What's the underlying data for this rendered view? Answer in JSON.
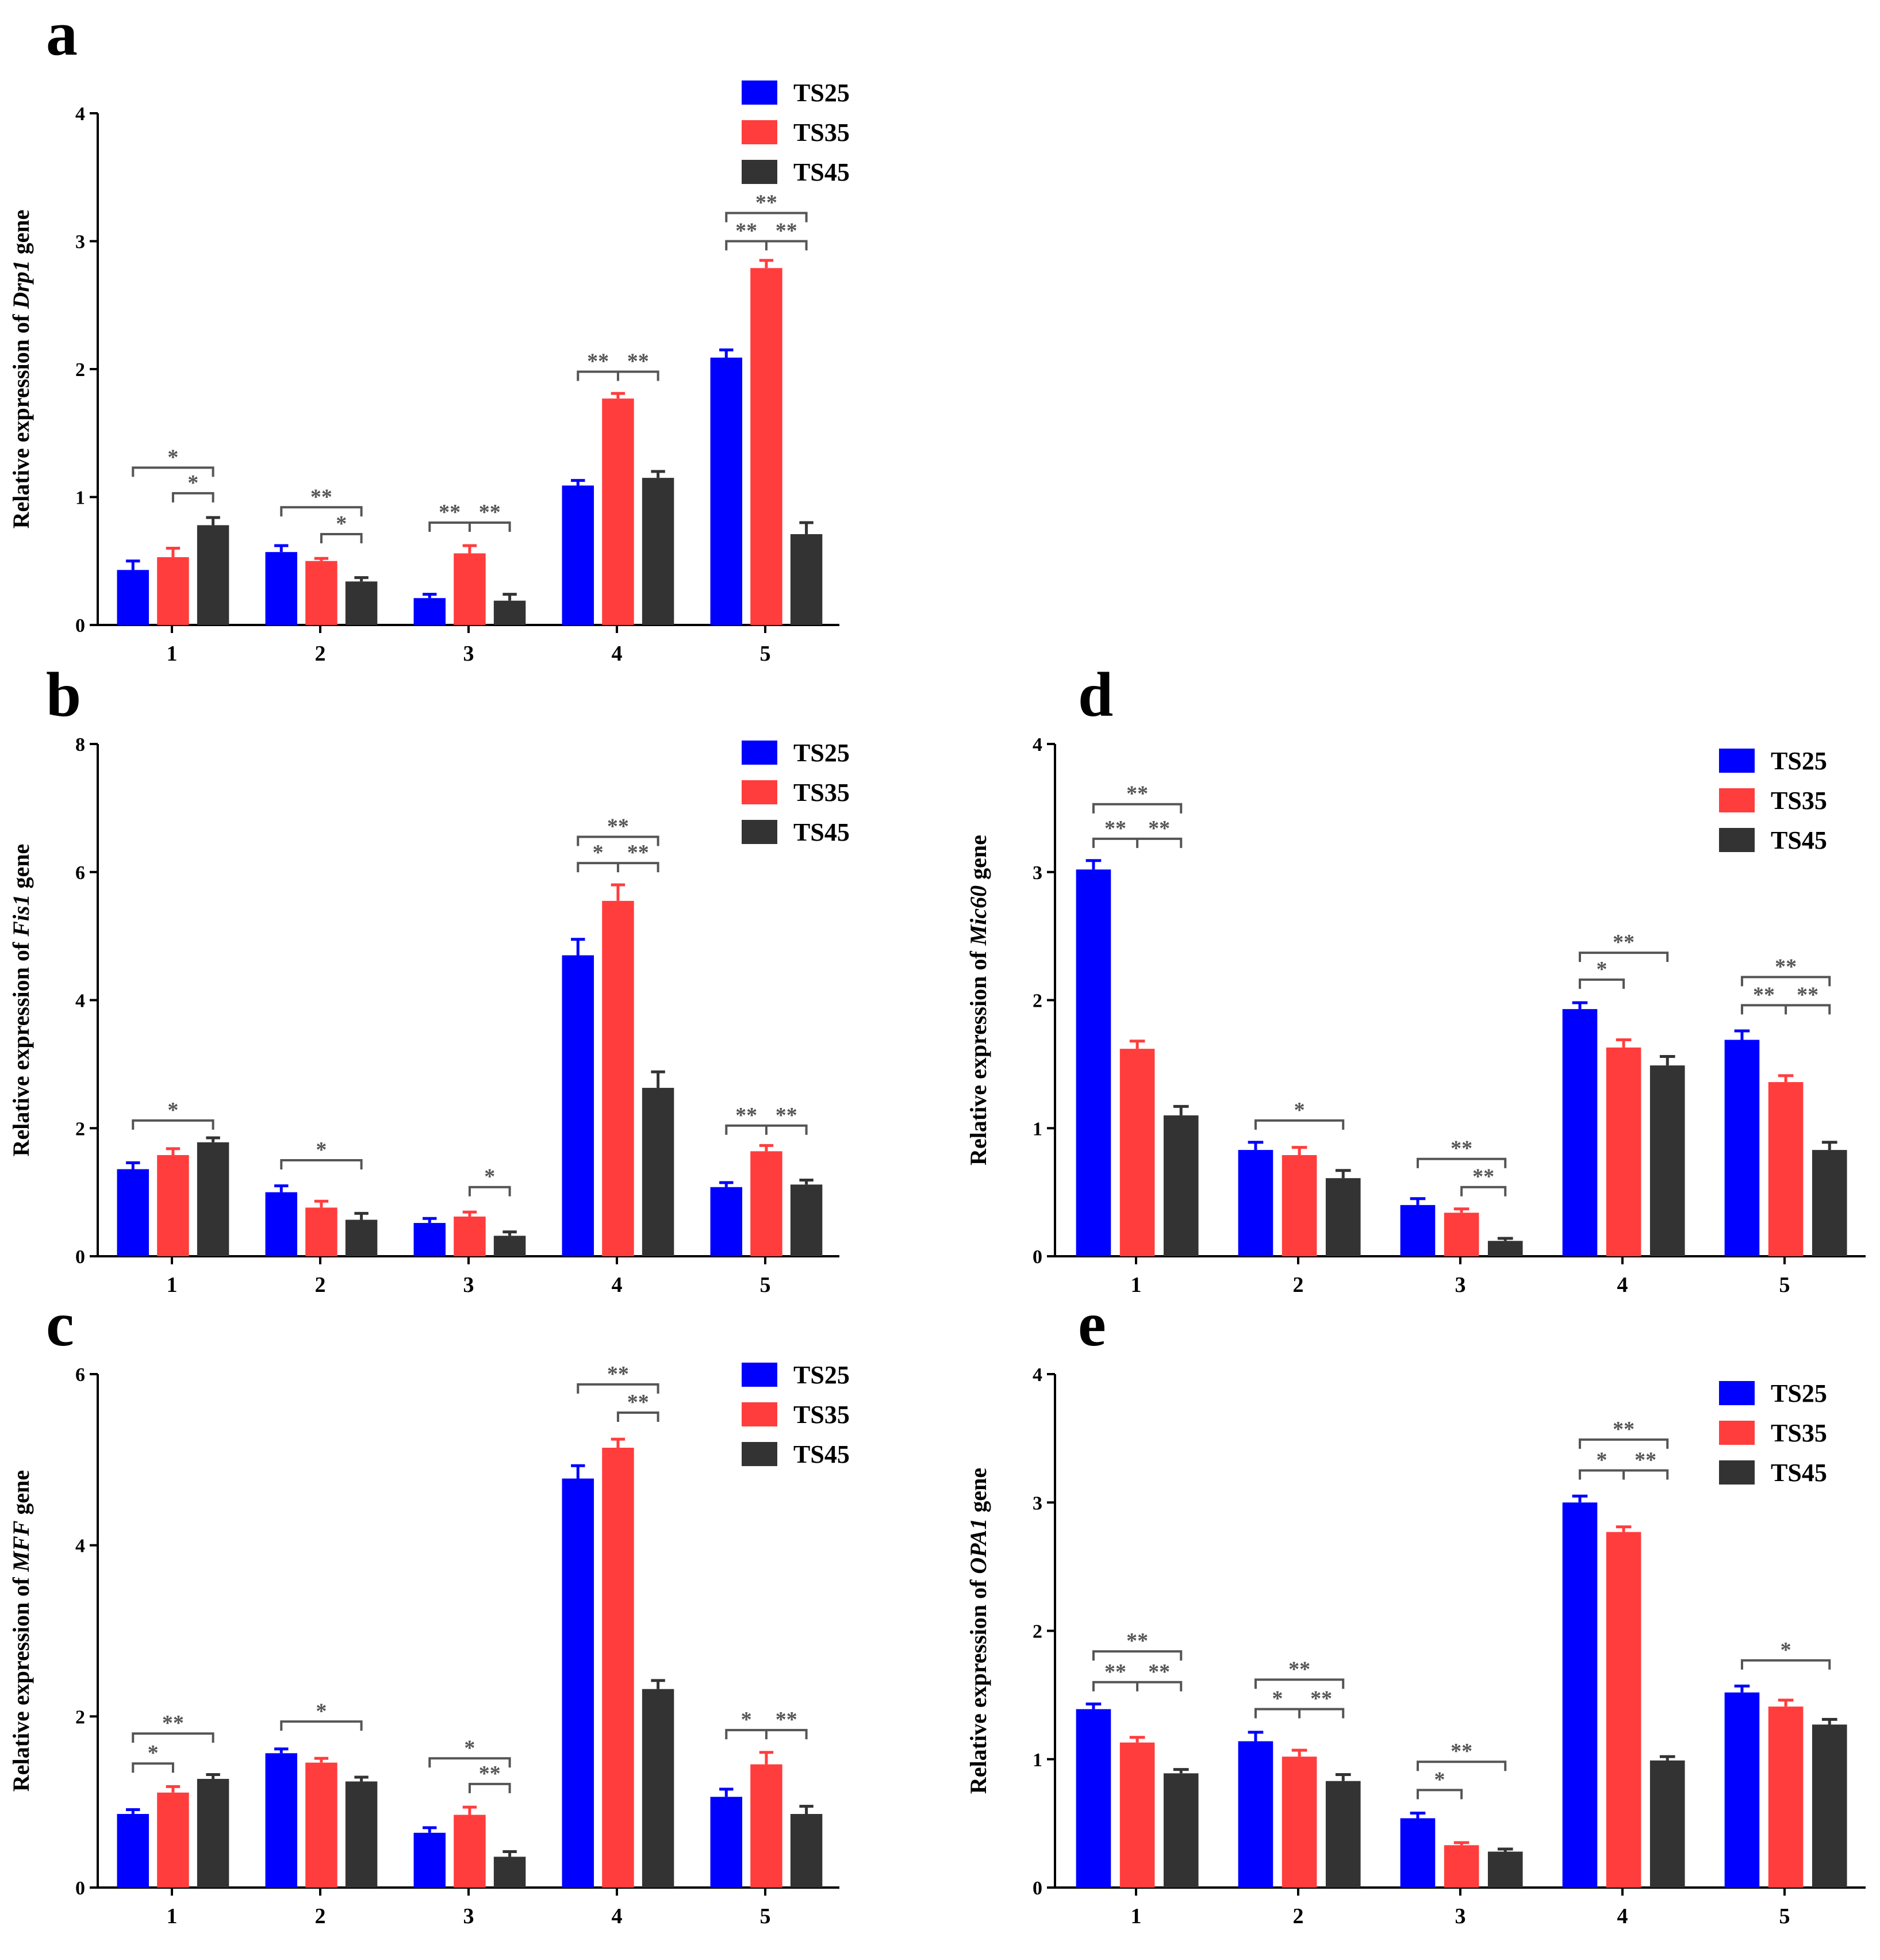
{
  "colors": {
    "TS25": "#0000FF",
    "TS35": "#FF3D3D",
    "TS45": "#333333",
    "annotation": "#555555"
  },
  "legend": [
    "TS25",
    "TS35",
    "TS45"
  ],
  "chart_data": [
    {
      "panel": "a",
      "type": "bar",
      "categories": [
        "1",
        "2",
        "3",
        "4",
        "5"
      ],
      "ylabel_prefix": "Relative expression of ",
      "gene": "Drp1",
      "ylabel_suffix": " gene",
      "ylim": [
        0,
        4
      ],
      "yticks": [
        "0",
        "1",
        "2",
        "3",
        "4"
      ],
      "series": [
        {
          "name": "TS25",
          "values": [
            0.43,
            0.57,
            0.21,
            1.09,
            2.09
          ],
          "errors": [
            0.07,
            0.05,
            0.03,
            0.04,
            0.06
          ]
        },
        {
          "name": "TS35",
          "values": [
            0.53,
            0.5,
            0.56,
            1.77,
            2.79
          ],
          "errors": [
            0.07,
            0.02,
            0.06,
            0.04,
            0.06
          ]
        },
        {
          "name": "TS45",
          "values": [
            0.78,
            0.34,
            0.19,
            1.15,
            0.71
          ],
          "errors": [
            0.06,
            0.03,
            0.05,
            0.05,
            0.09
          ]
        }
      ],
      "significance": [
        {
          "group": 0,
          "type": "bracket",
          "from": 0,
          "to": 2,
          "y": 1.23,
          "label": "*"
        },
        {
          "group": 0,
          "type": "bracket",
          "from": 1,
          "to": 2,
          "y": 1.03,
          "label": "*"
        },
        {
          "group": 1,
          "type": "bracket",
          "from": 0,
          "to": 2,
          "y": 0.92,
          "label": "**"
        },
        {
          "group": 1,
          "type": "bracket",
          "from": 1,
          "to": 2,
          "y": 0.71,
          "label": "*"
        },
        {
          "group": 2,
          "type": "triple",
          "y": 0.8,
          "labels": [
            "**",
            "**"
          ]
        },
        {
          "group": 3,
          "type": "triple",
          "y": 1.98,
          "labels": [
            "**",
            "**"
          ]
        },
        {
          "group": 4,
          "type": "bracket",
          "from": 0,
          "to": 2,
          "y": 3.22,
          "label": "**"
        },
        {
          "group": 4,
          "type": "triple",
          "y": 3.0,
          "labels": [
            "**",
            "**"
          ]
        }
      ]
    },
    {
      "panel": "b",
      "type": "bar",
      "categories": [
        "1",
        "2",
        "3",
        "4",
        "5"
      ],
      "ylabel_prefix": "Relative expression of ",
      "gene": "Fis1",
      "ylabel_suffix": " gene",
      "ylim": [
        0,
        8
      ],
      "yticks": [
        "0",
        "2",
        "4",
        "6",
        "8"
      ],
      "series": [
        {
          "name": "TS25",
          "values": [
            1.36,
            1.0,
            0.52,
            4.7,
            1.08
          ],
          "errors": [
            0.1,
            0.1,
            0.07,
            0.25,
            0.07
          ]
        },
        {
          "name": "TS35",
          "values": [
            1.58,
            0.76,
            0.62,
            5.55,
            1.64
          ],
          "errors": [
            0.1,
            0.1,
            0.07,
            0.25,
            0.09
          ]
        },
        {
          "name": "TS45",
          "values": [
            1.78,
            0.57,
            0.32,
            2.63,
            1.12
          ],
          "errors": [
            0.07,
            0.1,
            0.06,
            0.25,
            0.07
          ]
        }
      ],
      "significance": [
        {
          "group": 0,
          "type": "bracket",
          "from": 0,
          "to": 2,
          "y": 2.12,
          "label": "*"
        },
        {
          "group": 1,
          "type": "bracket",
          "from": 0,
          "to": 2,
          "y": 1.5,
          "label": "*"
        },
        {
          "group": 2,
          "type": "bracket",
          "from": 1,
          "to": 2,
          "y": 1.08,
          "label": "*"
        },
        {
          "group": 3,
          "type": "bracket",
          "from": 0,
          "to": 2,
          "y": 6.55,
          "label": "**"
        },
        {
          "group": 3,
          "type": "triple",
          "y": 6.14,
          "labels": [
            "*",
            "**"
          ]
        },
        {
          "group": 4,
          "type": "triple",
          "y": 2.04,
          "labels": [
            "**",
            "**"
          ]
        }
      ]
    },
    {
      "panel": "c",
      "type": "bar",
      "categories": [
        "1",
        "2",
        "3",
        "4",
        "5"
      ],
      "ylabel_prefix": "Relative expression of ",
      "gene": "MFF",
      "ylabel_suffix": " gene",
      "ylim": [
        0,
        6
      ],
      "yticks": [
        "0",
        "2",
        "4",
        "6"
      ],
      "series": [
        {
          "name": "TS25",
          "values": [
            0.86,
            1.57,
            0.64,
            4.78,
            1.06
          ],
          "errors": [
            0.05,
            0.05,
            0.06,
            0.15,
            0.09
          ]
        },
        {
          "name": "TS35",
          "values": [
            1.11,
            1.46,
            0.85,
            5.14,
            1.44
          ],
          "errors": [
            0.07,
            0.05,
            0.09,
            0.1,
            0.14
          ]
        },
        {
          "name": "TS45",
          "values": [
            1.27,
            1.24,
            0.36,
            2.32,
            0.86
          ],
          "errors": [
            0.05,
            0.05,
            0.06,
            0.1,
            0.09
          ]
        }
      ],
      "significance": [
        {
          "group": 0,
          "type": "bracket",
          "from": 0,
          "to": 2,
          "y": 1.8,
          "label": "**"
        },
        {
          "group": 0,
          "type": "bracket",
          "from": 0,
          "to": 1,
          "y": 1.45,
          "label": "*"
        },
        {
          "group": 1,
          "type": "bracket",
          "from": 0,
          "to": 2,
          "y": 1.94,
          "label": "*"
        },
        {
          "group": 2,
          "type": "bracket",
          "from": 0,
          "to": 2,
          "y": 1.51,
          "label": "*"
        },
        {
          "group": 2,
          "type": "bracket",
          "from": 1,
          "to": 2,
          "y": 1.21,
          "label": "**"
        },
        {
          "group": 3,
          "type": "bracket",
          "from": 0,
          "to": 2,
          "y": 5.88,
          "label": "**"
        },
        {
          "group": 3,
          "type": "bracket",
          "from": 1,
          "to": 2,
          "y": 5.55,
          "label": "**"
        },
        {
          "group": 4,
          "type": "triple",
          "y": 1.84,
          "labels": [
            "*",
            "**"
          ]
        }
      ]
    },
    {
      "panel": "d",
      "type": "bar",
      "categories": [
        "1",
        "2",
        "3",
        "4",
        "5"
      ],
      "ylabel_prefix": "Relative expression of ",
      "gene": "Mic60",
      "ylabel_suffix": " gene",
      "ylim": [
        0,
        4
      ],
      "yticks": [
        "0",
        "1",
        "2",
        "3",
        "4"
      ],
      "series": [
        {
          "name": "TS25",
          "values": [
            3.02,
            0.83,
            0.4,
            1.93,
            1.69
          ],
          "errors": [
            0.07,
            0.06,
            0.05,
            0.05,
            0.07
          ]
        },
        {
          "name": "TS35",
          "values": [
            1.62,
            0.79,
            0.34,
            1.63,
            1.36
          ],
          "errors": [
            0.06,
            0.06,
            0.03,
            0.06,
            0.05
          ]
        },
        {
          "name": "TS45",
          "values": [
            1.1,
            0.61,
            0.12,
            1.49,
            0.83
          ],
          "errors": [
            0.07,
            0.06,
            0.02,
            0.07,
            0.06
          ]
        }
      ],
      "significance": [
        {
          "group": 0,
          "type": "bracket",
          "from": 0,
          "to": 2,
          "y": 3.53,
          "label": "**"
        },
        {
          "group": 0,
          "type": "triple",
          "y": 3.26,
          "labels": [
            "**",
            "**"
          ]
        },
        {
          "group": 1,
          "type": "bracket",
          "from": 0,
          "to": 2,
          "y": 1.06,
          "label": "*"
        },
        {
          "group": 2,
          "type": "bracket",
          "from": 0,
          "to": 2,
          "y": 0.76,
          "label": "**"
        },
        {
          "group": 2,
          "type": "bracket",
          "from": 1,
          "to": 2,
          "y": 0.54,
          "label": "**"
        },
        {
          "group": 3,
          "type": "bracket",
          "from": 0,
          "to": 2,
          "y": 2.37,
          "label": "**"
        },
        {
          "group": 3,
          "type": "bracket",
          "from": 0,
          "to": 1,
          "y": 2.16,
          "label": "*"
        },
        {
          "group": 4,
          "type": "bracket",
          "from": 0,
          "to": 2,
          "y": 2.18,
          "label": "**"
        },
        {
          "group": 4,
          "type": "triple",
          "y": 1.96,
          "labels": [
            "**",
            "**"
          ]
        }
      ]
    },
    {
      "panel": "e",
      "type": "bar",
      "categories": [
        "1",
        "2",
        "3",
        "4",
        "5"
      ],
      "ylabel_prefix": "Relative expression of ",
      "gene": "OPA1",
      "ylabel_suffix": " gene",
      "ylim": [
        0,
        4
      ],
      "yticks": [
        "0",
        "1",
        "2",
        "3",
        "4"
      ],
      "series": [
        {
          "name": "TS25",
          "values": [
            1.39,
            1.14,
            0.54,
            3.0,
            1.52
          ],
          "errors": [
            0.04,
            0.07,
            0.04,
            0.05,
            0.05
          ]
        },
        {
          "name": "TS35",
          "values": [
            1.13,
            1.02,
            0.33,
            2.77,
            1.41
          ],
          "errors": [
            0.04,
            0.05,
            0.02,
            0.04,
            0.05
          ]
        },
        {
          "name": "TS45",
          "values": [
            0.89,
            0.83,
            0.28,
            0.99,
            1.27
          ],
          "errors": [
            0.03,
            0.05,
            0.02,
            0.03,
            0.04
          ]
        }
      ],
      "significance": [
        {
          "group": 0,
          "type": "bracket",
          "from": 0,
          "to": 2,
          "y": 1.84,
          "label": "**"
        },
        {
          "group": 0,
          "type": "triple",
          "y": 1.6,
          "labels": [
            "**",
            "**"
          ]
        },
        {
          "group": 1,
          "type": "bracket",
          "from": 0,
          "to": 2,
          "y": 1.62,
          "label": "**"
        },
        {
          "group": 1,
          "type": "triple",
          "y": 1.39,
          "labels": [
            "*",
            "**"
          ]
        },
        {
          "group": 2,
          "type": "bracket",
          "from": 0,
          "to": 2,
          "y": 0.98,
          "label": "**"
        },
        {
          "group": 2,
          "type": "bracket",
          "from": 0,
          "to": 1,
          "y": 0.76,
          "label": "*"
        },
        {
          "group": 3,
          "type": "bracket",
          "from": 0,
          "to": 2,
          "y": 3.49,
          "label": "**"
        },
        {
          "group": 3,
          "type": "triple",
          "y": 3.25,
          "labels": [
            "*",
            "**"
          ]
        },
        {
          "group": 4,
          "type": "bracket",
          "from": 0,
          "to": 2,
          "y": 1.77,
          "label": "*"
        }
      ]
    }
  ]
}
